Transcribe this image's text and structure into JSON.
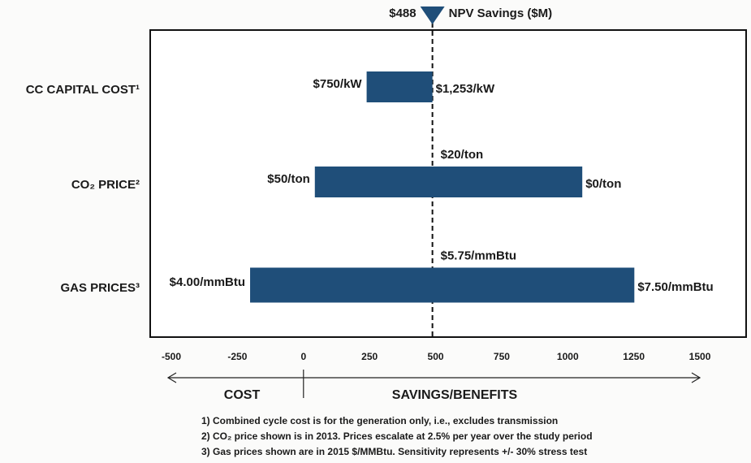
{
  "chart_data": {
    "type": "tornado",
    "categories": [
      "CC CAPITAL COST¹",
      "CO₂ PRICE²",
      "GAS PRICES³"
    ],
    "low_values": [
      239,
      43,
      -202
    ],
    "high_values": [
      488,
      1055,
      1252
    ],
    "low_labels": [
      "$750/kW",
      "$50/ton",
      "$4.00/mmBtu"
    ],
    "high_labels": [
      "$1,253/kW",
      "$0/ton",
      "$7.50/mmBtu"
    ],
    "base_labels": [
      null,
      "$20/ton",
      "$5.75/mmBtu"
    ],
    "base": 488,
    "base_label": "$488",
    "base_title": "NPV Savings ($M)",
    "color": "#1f4e79",
    "xlim": [
      -580,
      1675
    ],
    "xticks": [
      -500,
      -250,
      0,
      250,
      500,
      750,
      1000,
      1250,
      1500
    ],
    "cost_label": "COST",
    "benefit_label": "SAVINGS/BENEFITS",
    "notes": [
      "1)  Combined cycle cost is for the generation only, i.e., excludes transmission",
      "2)  CO₂ price shown is in 2013.  Prices escalate at 2.5% per year over the study period",
      "3)  Gas prices shown are in 2015 $/MMBtu. Sensitivity represents +/- 30% stress test"
    ]
  }
}
